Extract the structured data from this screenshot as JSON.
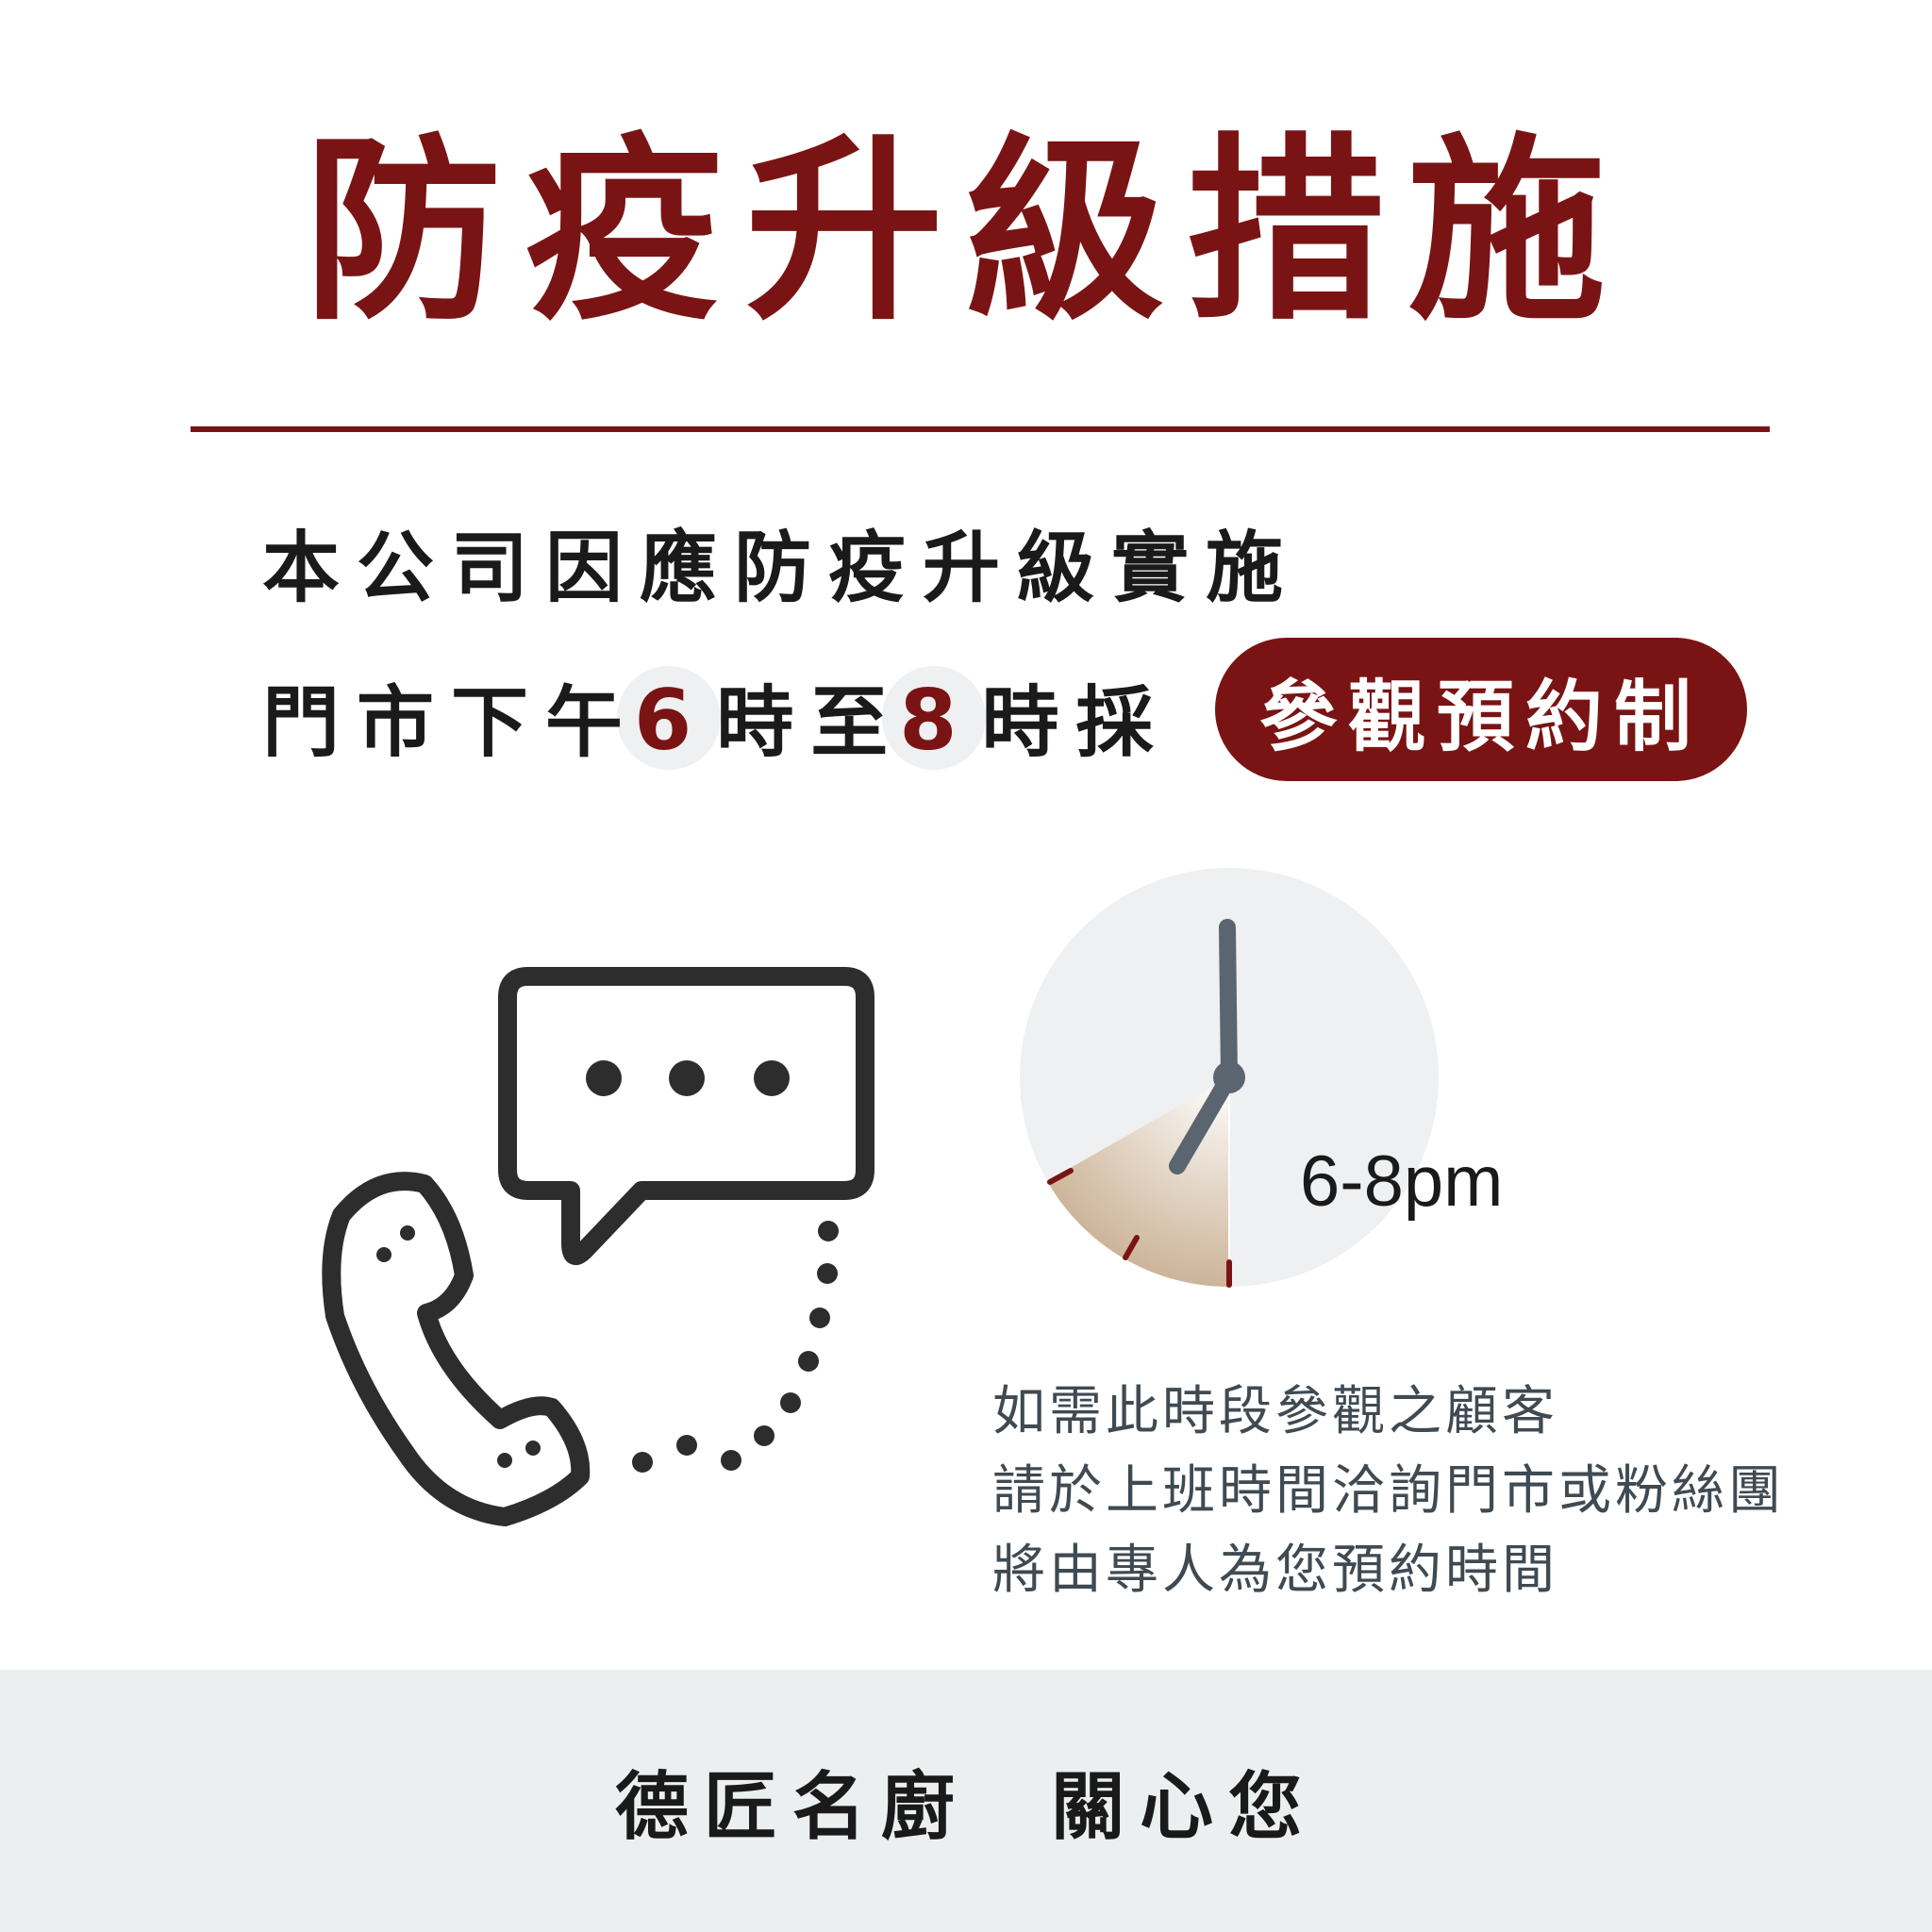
{
  "title": "防疫升級措施",
  "line1": "本公司因應防疫升級實施",
  "line2": {
    "part1": "門市下午",
    "num1": "6",
    "part2": "時至",
    "num2": "8",
    "part3": "時採"
  },
  "pill": "參觀預約制",
  "time_label": "6-8pm",
  "info_lines": [
    "如需此時段參觀之顧客",
    "請於上班時間洽詢門市或粉絲團",
    "將由專人為您預約時間"
  ],
  "footer": "德匠名廚  關心您",
  "colors": {
    "accent": "#7a1414",
    "text_dark": "#1a1a1a",
    "text_gray": "#3f4a52",
    "footer_bg": "#eceff0"
  },
  "icons": [
    "phone-icon",
    "chat-bubble-icon",
    "clock-icon"
  ]
}
